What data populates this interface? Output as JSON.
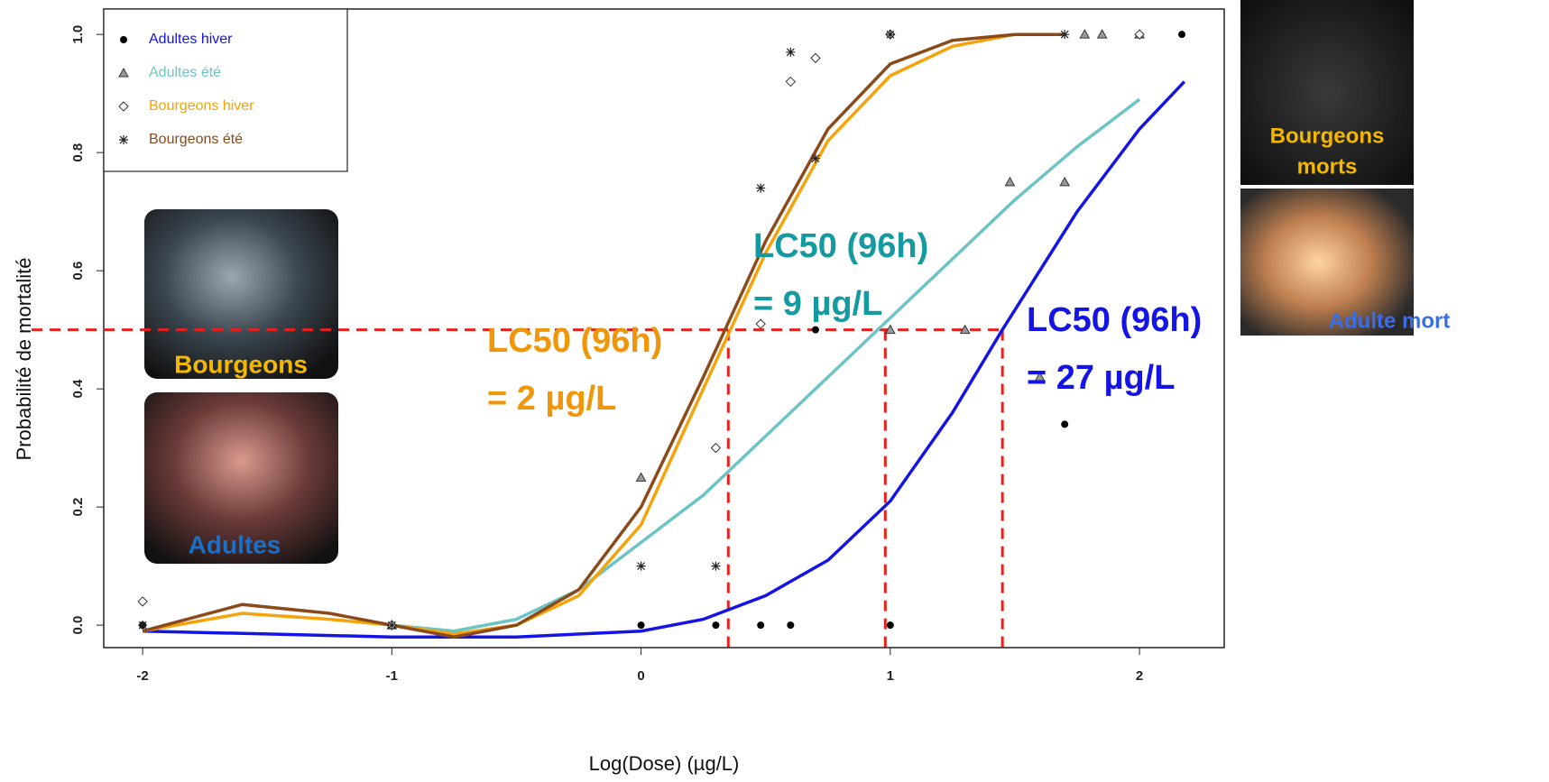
{
  "chart_data": {
    "type": "scatter",
    "x_label": "Log(Dose) (µg/L)",
    "y_label": "Probabilité de mortalité",
    "xlim": [
      -2.156,
      2.34
    ],
    "ylim": [
      -0.038,
      1.043
    ],
    "xticks": [
      -2,
      -1,
      0,
      1,
      2
    ],
    "yticks": [
      {
        "value": 0,
        "label": "0.0"
      },
      {
        "value": 0.2,
        "label": "0.2"
      },
      {
        "value": 0.4,
        "label": "0.4"
      },
      {
        "value": 0.6,
        "label": "0.6"
      },
      {
        "value": 0.8,
        "label": "0.8"
      },
      {
        "value": 1,
        "label": "1.0"
      }
    ],
    "legend": "top-left",
    "series": [
      {
        "name": "Adultes hiver",
        "color": "#1414e6",
        "marker": "circle",
        "x": [
          -2,
          0,
          0.3,
          0.48,
          0.6,
          0.7,
          1,
          1.7,
          2.17
        ],
        "values": [
          0,
          0,
          0,
          0,
          0,
          0.5,
          0,
          0.34,
          1
        ],
        "fit": {
          "x": [
            -2,
            -1.5,
            -1,
            -0.5,
            0,
            0.25,
            0.5,
            0.75,
            1,
            1.25,
            1.45,
            1.75,
            2,
            2.18
          ],
          "values": [
            -0.01,
            -0.015,
            -0.02,
            -0.02,
            -0.01,
            0.01,
            0.05,
            0.11,
            0.21,
            0.36,
            0.5,
            0.7,
            0.84,
            0.92
          ]
        }
      },
      {
        "name": "Adultes été",
        "color": "#6cc4c4",
        "marker": "triangle",
        "x": [
          -1,
          0,
          1,
          1.3,
          1.48,
          1.6,
          1.7,
          1.78,
          1.85,
          2
        ],
        "values": [
          0,
          0.25,
          0.5,
          0.5,
          0.75,
          0.42,
          0.75,
          1,
          1,
          1
        ],
        "fit": {
          "x": [
            -1,
            -0.75,
            -0.5,
            -0.25,
            0,
            0.25,
            0.5,
            0.75,
            1,
            1.25,
            1.5,
            1.75,
            2
          ],
          "values": [
            0,
            -0.01,
            0.01,
            0.06,
            0.14,
            0.22,
            0.32,
            0.42,
            0.52,
            0.62,
            0.72,
            0.81,
            0.89
          ]
        }
      },
      {
        "name": "Bourgeons hiver",
        "color": "#f5a30a",
        "marker": "diamond",
        "x": [
          -2,
          -1,
          0.3,
          0.48,
          0.6,
          0.7,
          1,
          2
        ],
        "values": [
          0.04,
          0,
          0.3,
          0.51,
          0.92,
          0.96,
          1,
          1
        ],
        "fit": {
          "x": [
            -2,
            -1.6,
            -1.25,
            -1,
            -0.75,
            -0.5,
            -0.25,
            0,
            0.25,
            0.5,
            0.75,
            1,
            1.25,
            1.5,
            1.7
          ],
          "values": [
            -0.01,
            0.02,
            0.01,
            0,
            -0.015,
            0,
            0.05,
            0.17,
            0.4,
            0.63,
            0.82,
            0.93,
            0.98,
            1,
            1
          ]
        }
      },
      {
        "name": "Bourgeons été",
        "color": "#8b4a1a",
        "marker": "star",
        "x": [
          -2,
          -1,
          0,
          0.3,
          0.48,
          0.6,
          0.7,
          1,
          1.7
        ],
        "values": [
          0,
          0,
          0.1,
          0.1,
          0.74,
          0.97,
          0.79,
          1,
          1
        ],
        "fit": {
          "x": [
            -2,
            -1.6,
            -1.25,
            -1,
            -0.75,
            -0.5,
            -0.25,
            0,
            0.25,
            0.5,
            0.75,
            1,
            1.25,
            1.5,
            1.7
          ],
          "values": [
            -0.01,
            0.035,
            0.02,
            0,
            -0.02,
            0,
            0.06,
            0.2,
            0.42,
            0.65,
            0.84,
            0.95,
            0.99,
            1,
            1
          ]
        }
      }
    ],
    "reference_lines": {
      "color": "#e8201c",
      "y": 0.5,
      "x": [
        0.35,
        0.98,
        1.45
      ]
    },
    "annotations": [
      {
        "lines": [
          "LC50 (96h)",
          "= 2 µg/L"
        ],
        "color": "#f0960a"
      },
      {
        "lines": [
          "LC50 (96h)",
          "= 9 µg/L"
        ],
        "color": "#159aa0"
      },
      {
        "lines": [
          "LC50 (96h)",
          "= 27 µg/L"
        ],
        "color": "#1414e6"
      }
    ],
    "photo_labels": [
      {
        "lines": [
          "Bourgeons"
        ],
        "color": "#f5b800"
      },
      {
        "lines": [
          "Adultes"
        ],
        "color": "#1a6fc8"
      },
      {
        "lines": [
          "Bourgeons",
          "morts"
        ],
        "color": "#f5b800"
      },
      {
        "lines": [
          "Adulte mort"
        ],
        "color": "#3a6ee8"
      }
    ]
  }
}
